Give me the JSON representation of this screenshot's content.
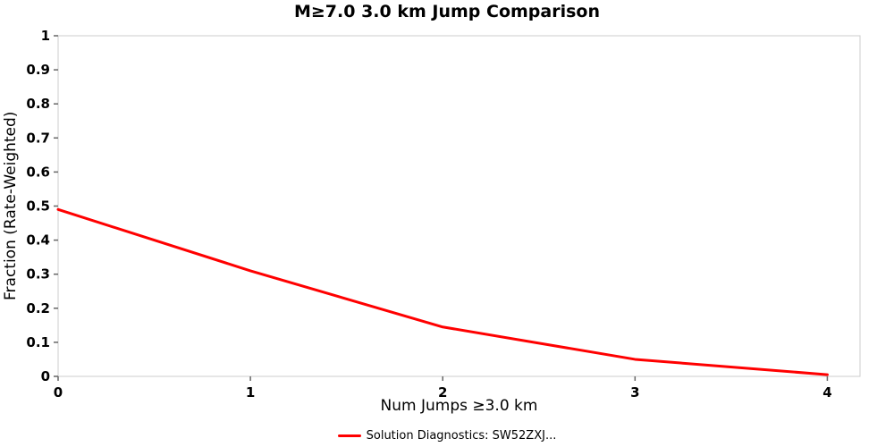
{
  "chart_data": {
    "type": "line",
    "title": "M≥7.0 3.0 km Jump Comparison",
    "xlabel": "Num Jumps ≥3.0 km",
    "ylabel": "Fraction (Rate-Weighted)",
    "x": [
      0,
      1,
      2,
      3,
      4
    ],
    "series": [
      {
        "name": "Solution Diagnostics: SW52ZXJ...",
        "color": "#ff0000",
        "values": [
          0.49,
          0.31,
          0.145,
          0.05,
          0.005
        ]
      }
    ],
    "xlim": [
      0,
      4.17
    ],
    "ylim": [
      0,
      1
    ],
    "xticks": [
      0,
      1,
      2,
      3,
      4
    ],
    "xtick_labels": [
      "0",
      "1",
      "2",
      "3",
      "4"
    ],
    "yticks": [
      0,
      0.1,
      0.2,
      0.3,
      0.4,
      0.5,
      0.6,
      0.7,
      0.8,
      0.9,
      1
    ],
    "ytick_labels": [
      "0",
      "0.1",
      "0.2",
      "0.3",
      "0.4",
      "0.5",
      "0.6",
      "0.7",
      "0.8",
      "0.9",
      "1"
    ],
    "grid": false,
    "legend_position": "bottom",
    "axis_border_color": "#cccccc",
    "tick_color": "#666666",
    "line_width": 3
  }
}
